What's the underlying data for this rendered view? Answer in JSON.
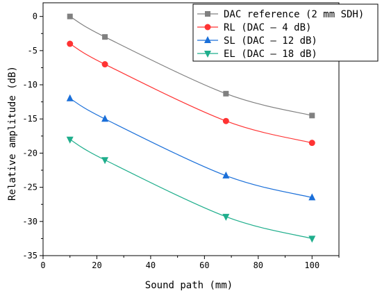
{
  "chart_data": {
    "type": "line",
    "title": "",
    "xlabel": "Sound path (mm)",
    "ylabel": "Relative amplitude (dB)",
    "xlim": [
      0,
      110
    ],
    "ylim": [
      -35,
      2
    ],
    "xticks": [
      0,
      20,
      40,
      60,
      80,
      100
    ],
    "yticks": [
      0,
      -5,
      -10,
      -15,
      -20,
      -25,
      -30,
      -35
    ],
    "grid": false,
    "legend_position": "top-right",
    "series": [
      {
        "name": "DAC reference (2 mm SDH)",
        "color": "#808080",
        "marker": "square",
        "x": [
          10,
          23,
          68,
          100
        ],
        "y": [
          0,
          -3,
          -11.3,
          -14.5
        ]
      },
      {
        "name": "RL (DAC – 4 dB)",
        "color": "#ff3333",
        "marker": "circle",
        "x": [
          10,
          23,
          68,
          100
        ],
        "y": [
          -4,
          -7,
          -15.3,
          -18.5
        ]
      },
      {
        "name": "SL (DAC – 12 dB)",
        "color": "#1a6fd9",
        "marker": "triangle-up",
        "x": [
          10,
          23,
          68,
          100
        ],
        "y": [
          -12,
          -15,
          -23.3,
          -26.5
        ]
      },
      {
        "name": "EL (DAC – 18 dB)",
        "color": "#1fae8c",
        "marker": "triangle-down",
        "x": [
          10,
          23,
          68,
          100
        ],
        "y": [
          -18,
          -21,
          -29.3,
          -32.5
        ]
      }
    ]
  }
}
